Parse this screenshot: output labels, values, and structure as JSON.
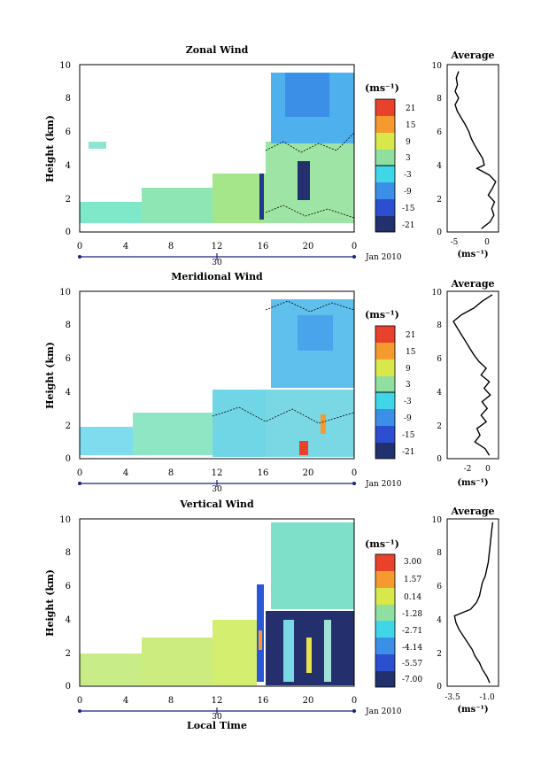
{
  "figure": {
    "x_label": "Local Time",
    "date_label": "Jan 2010",
    "day_label": "30"
  },
  "chart_data": [
    {
      "type": "heatmap",
      "title": "Zonal Wind",
      "ylabel": "Height (km)",
      "xlabel": "Local Time",
      "x_ticks": [
        "0",
        "4",
        "8",
        "12",
        "16",
        "20",
        "0"
      ],
      "y_ticks": [
        "0",
        "2",
        "4",
        "6",
        "8",
        "10"
      ],
      "xlim": [
        0,
        24
      ],
      "ylim": [
        0,
        10
      ],
      "colorbar": {
        "unit": "(ms⁻¹)",
        "ticks": [
          "21",
          "15",
          "9",
          "3",
          "-3",
          "-9",
          "-15",
          "-21"
        ]
      },
      "profile": {
        "title": "Average",
        "xlabel": "(ms⁻¹)",
        "x_ticks": [
          "-5",
          "0"
        ],
        "xlim": [
          -7,
          2
        ],
        "y": [
          0.2,
          0.6,
          1.0,
          1.4,
          1.8,
          2.2,
          2.6,
          3.0,
          3.4,
          3.8,
          4.0,
          4.4,
          4.8,
          5.2,
          5.6,
          6.0,
          6.4,
          6.8,
          7.2,
          7.6,
          8.0,
          8.4,
          8.8,
          9.2,
          9.6
        ],
        "x": [
          -1.0,
          0.5,
          1.2,
          0.8,
          1.3,
          0.2,
          0.9,
          1.5,
          0.4,
          -1.8,
          -0.5,
          -0.8,
          -1.5,
          -2.2,
          -2.8,
          -3.2,
          -3.8,
          -4.5,
          -5.2,
          -5.6,
          -5.0,
          -5.6,
          -5.2,
          -5.4,
          -5.0
        ]
      }
    },
    {
      "type": "heatmap",
      "title": "Meridional Wind",
      "ylabel": "Height (km)",
      "xlabel": "Local Time",
      "x_ticks": [
        "0",
        "4",
        "8",
        "12",
        "16",
        "20",
        "0"
      ],
      "y_ticks": [
        "0",
        "2",
        "4",
        "6",
        "8",
        "10"
      ],
      "xlim": [
        0,
        24
      ],
      "ylim": [
        0,
        10
      ],
      "colorbar": {
        "unit": "(ms⁻¹)",
        "ticks": [
          "21",
          "15",
          "9",
          "3",
          "-3",
          "-9",
          "-15",
          "-21"
        ]
      },
      "profile": {
        "title": "Average",
        "xlabel": "(ms⁻¹)",
        "x_ticks": [
          "-2",
          "0"
        ],
        "xlim": [
          -4,
          1
        ],
        "y": [
          0.2,
          0.6,
          1.0,
          1.4,
          1.8,
          2.2,
          2.6,
          3.0,
          3.4,
          3.8,
          4.2,
          4.6,
          5.0,
          5.4,
          5.8,
          6.2,
          6.6,
          7.0,
          7.4,
          7.8,
          8.2,
          8.6,
          9.0,
          9.4,
          9.8
        ],
        "x": [
          0.1,
          -0.3,
          -1.3,
          -0.8,
          -1.1,
          -0.2,
          -0.7,
          -0.1,
          -0.6,
          0.2,
          -0.4,
          0.1,
          -0.7,
          -0.2,
          -0.9,
          -1.4,
          -1.8,
          -2.2,
          -2.6,
          -3.0,
          -3.4,
          -2.6,
          -1.4,
          -0.6,
          0.4
        ]
      }
    },
    {
      "type": "heatmap",
      "title": "Vertical Wind",
      "ylabel": "Height (km)",
      "xlabel": "Local Time",
      "x_ticks": [
        "0",
        "4",
        "8",
        "12",
        "16",
        "20",
        "0"
      ],
      "y_ticks": [
        "0",
        "2",
        "4",
        "6",
        "8",
        "10"
      ],
      "xlim": [
        0,
        24
      ],
      "ylim": [
        0,
        10
      ],
      "colorbar": {
        "unit": "(ms⁻¹)",
        "ticks": [
          "3.00",
          "1.57",
          "0.14",
          "-1.28",
          "-2.71",
          "-4.14",
          "-5.57",
          "-7.00"
        ]
      },
      "profile": {
        "title": "Average",
        "xlabel": "(ms⁻¹)",
        "x_ticks": [
          "-3.5",
          "-1.0"
        ],
        "xlim": [
          -4.0,
          -0.5
        ],
        "y": [
          0.2,
          0.6,
          1.0,
          1.4,
          1.8,
          2.2,
          2.6,
          3.0,
          3.4,
          3.8,
          4.2,
          4.6,
          5.0,
          5.4,
          5.8,
          6.2,
          6.6,
          7.0,
          7.4,
          7.8,
          8.2,
          8.6,
          9.0,
          9.4,
          9.8
        ],
        "x": [
          -1.1,
          -1.3,
          -1.6,
          -1.8,
          -2.1,
          -2.3,
          -2.6,
          -2.9,
          -3.2,
          -3.4,
          -3.5,
          -2.4,
          -2.0,
          -1.8,
          -1.7,
          -1.6,
          -1.4,
          -1.3,
          -1.2,
          -1.15,
          -1.1,
          -1.05,
          -1.0,
          -0.95,
          -0.9
        ]
      }
    }
  ]
}
